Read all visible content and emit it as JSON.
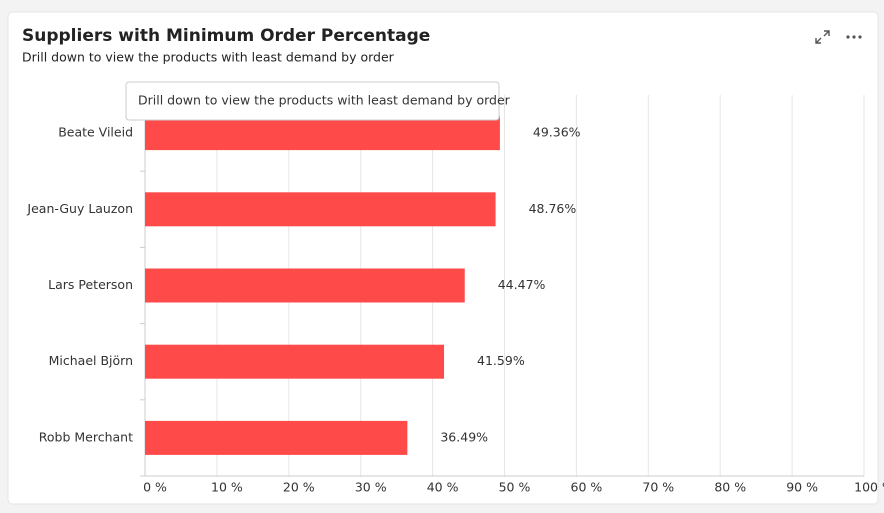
{
  "chart_data": {
    "type": "hbar",
    "title": "Suppliers with Minimum Order Percentage",
    "subtitle": "Drill down to view the products with least demand by order",
    "tooltip": "Drill down to view the products with least demand by order",
    "categories": [
      "Beate Vileid",
      "Jean-Guy Lauzon",
      "Lars Peterson",
      "Michael Björn",
      "Robb Merchant"
    ],
    "values": [
      49.36,
      48.76,
      44.47,
      41.59,
      36.49
    ],
    "value_labels": [
      "49.36%",
      "48.76%",
      "44.47%",
      "41.59%",
      "36.49%"
    ],
    "color": "#ff4a4a",
    "xlim": [
      0,
      100
    ],
    "xticks": [
      {
        "value": 0,
        "label": "0 %"
      },
      {
        "value": 10,
        "label": "10 %"
      },
      {
        "value": 20,
        "label": "20 %"
      },
      {
        "value": 30,
        "label": "30 %"
      },
      {
        "value": 40,
        "label": "40 %"
      },
      {
        "value": 50,
        "label": "50 %"
      },
      {
        "value": 60,
        "label": "60 %"
      },
      {
        "value": 70,
        "label": "70 %"
      },
      {
        "value": 80,
        "label": "80 %"
      },
      {
        "value": 90,
        "label": "90 %"
      },
      {
        "value": 100,
        "label": "100 %"
      }
    ],
    "grid": true
  }
}
